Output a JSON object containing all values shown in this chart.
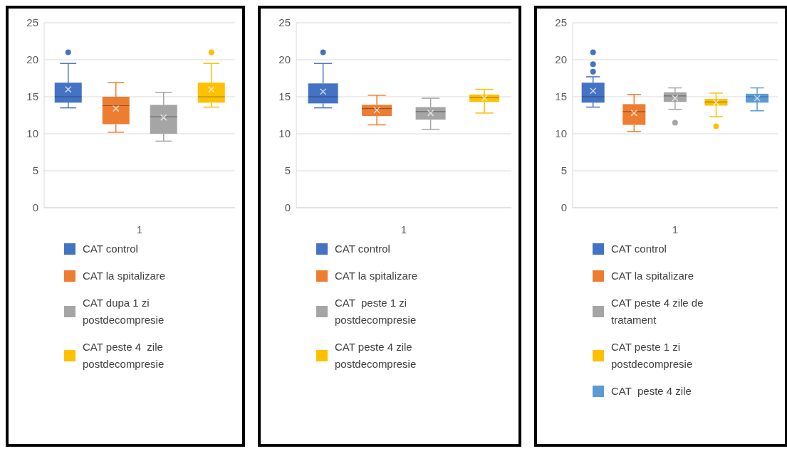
{
  "chart_data": [
    {
      "type": "box",
      "categories": [
        null,
        null,
        null,
        null
      ],
      "xlabel": "1",
      "ylim": [
        0,
        25
      ],
      "yticks": [
        0,
        5,
        10,
        15,
        20,
        25
      ],
      "grid": "y",
      "legend": "bottom",
      "series": [
        {
          "name": "CAT control",
          "color": "#4472c4",
          "boxes": [
            {
              "low": 13.5,
              "q1": 14.2,
              "median": 15,
              "q3": 16.9,
              "high": 19.5,
              "mean": 16,
              "outliers": [
                21
              ]
            },
            null,
            null,
            null
          ]
        },
        {
          "name": "CAT la spitalizare",
          "color": "#ed7d31",
          "boxes": [
            null,
            {
              "low": 10.2,
              "q1": 11.3,
              "median": 13.8,
              "q3": 15,
              "high": 16.9,
              "mean": 13.4
            },
            null,
            null
          ]
        },
        {
          "name": "CAT dupa 1 zi postdecompresie",
          "color": "#a5a5a5",
          "boxes": [
            null,
            null,
            {
              "low": 9,
              "q1": 10,
              "median": 12.3,
              "q3": 13.9,
              "high": 15.6,
              "mean": 12.2
            },
            null
          ]
        },
        {
          "name": "CAT peste 4  zile postdecompresie",
          "color": "#ffc000",
          "boxes": [
            null,
            null,
            null,
            {
              "low": 13.6,
              "q1": 14.2,
              "median": 15,
              "q3": 16.9,
              "high": 19.5,
              "mean": 16,
              "outliers": [
                21
              ]
            }
          ]
        }
      ]
    },
    {
      "type": "box",
      "categories": [
        null,
        null,
        null,
        null
      ],
      "xlabel": "1",
      "ylim": [
        0,
        25
      ],
      "yticks": [
        0,
        5,
        10,
        15,
        20,
        25
      ],
      "grid": "y",
      "legend": "bottom",
      "series": [
        {
          "name": "CAT control",
          "color": "#4472c4",
          "boxes": [
            {
              "low": 13.5,
              "q1": 14.1,
              "median": 15,
              "q3": 16.8,
              "high": 19.5,
              "mean": 15.7,
              "outliers": [
                21
              ]
            },
            null,
            null,
            null
          ]
        },
        {
          "name": "CAT la spitalizare",
          "color": "#ed7d31",
          "boxes": [
            null,
            {
              "low": 11.2,
              "q1": 12.4,
              "median": 13.4,
              "q3": 13.9,
              "high": 15.2,
              "mean": 13.2
            },
            null,
            null
          ]
        },
        {
          "name": "CAT  peste 1 zi postdecompresie",
          "color": "#a5a5a5",
          "boxes": [
            null,
            null,
            {
              "low": 10.6,
              "q1": 11.9,
              "median": 13,
              "q3": 13.6,
              "high": 14.8,
              "mean": 12.8
            },
            null
          ]
        },
        {
          "name": "CAT peste 4 zile postdecompresie",
          "color": "#ffc000",
          "boxes": [
            null,
            null,
            null,
            {
              "low": 12.8,
              "q1": 14.3,
              "median": 14.9,
              "q3": 15.3,
              "high": 16,
              "mean": 14.8
            }
          ]
        }
      ]
    },
    {
      "type": "box",
      "categories": [
        null,
        null,
        null,
        null,
        null
      ],
      "xlabel": "1",
      "ylim": [
        0,
        25
      ],
      "yticks": [
        0,
        5,
        10,
        15,
        20,
        25
      ],
      "grid": "y",
      "legend": "bottom",
      "series": [
        {
          "name": "CAT control",
          "color": "#4472c4",
          "boxes": [
            {
              "low": 13.6,
              "q1": 14.2,
              "median": 15,
              "q3": 16.9,
              "high": 17.7,
              "mean": 15.8,
              "outliers": [
                21,
                19.4,
                18.4
              ]
            },
            null,
            null,
            null,
            null
          ]
        },
        {
          "name": "CAT la spitalizare",
          "color": "#ed7d31",
          "boxes": [
            null,
            {
              "low": 10.3,
              "q1": 11.2,
              "median": 13,
              "q3": 14,
              "high": 15.3,
              "mean": 12.8
            },
            null,
            null,
            null
          ]
        },
        {
          "name": "CAT peste 4 zile de tratament",
          "color": "#a5a5a5",
          "boxes": [
            null,
            null,
            {
              "low": 13.3,
              "q1": 14.3,
              "median": 15.1,
              "q3": 15.6,
              "high": 16.2,
              "mean": 14.8,
              "outliers": [
                11.5
              ]
            },
            null,
            null
          ]
        },
        {
          "name": "CAT peste 1 zi postdecompresie",
          "color": "#ffc000",
          "boxes": [
            null,
            null,
            null,
            {
              "low": 12.3,
              "q1": 13.8,
              "median": 14.3,
              "q3": 14.7,
              "high": 15.5,
              "mean": 14.2,
              "outliers": [
                11
              ]
            },
            null
          ]
        },
        {
          "name": "CAT  peste 4 zile",
          "color": "#5b9bd5",
          "boxes": [
            null,
            null,
            null,
            null,
            {
              "low": 13.1,
              "q1": 14.2,
              "median": 15,
              "q3": 15.4,
              "high": 16.2,
              "mean": 14.8
            }
          ]
        }
      ]
    }
  ]
}
